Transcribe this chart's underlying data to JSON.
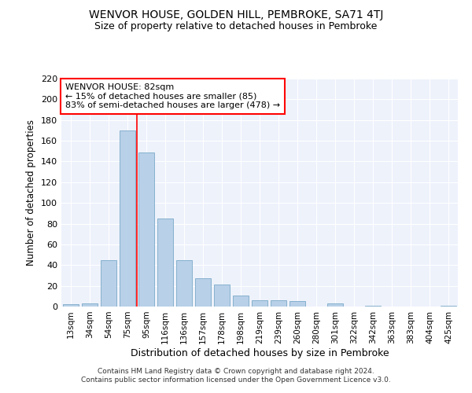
{
  "title": "WENVOR HOUSE, GOLDEN HILL, PEMBROKE, SA71 4TJ",
  "subtitle": "Size of property relative to detached houses in Pembroke",
  "xlabel": "Distribution of detached houses by size in Pembroke",
  "ylabel": "Number of detached properties",
  "categories": [
    "13sqm",
    "34sqm",
    "54sqm",
    "75sqm",
    "95sqm",
    "116sqm",
    "136sqm",
    "157sqm",
    "178sqm",
    "198sqm",
    "219sqm",
    "239sqm",
    "260sqm",
    "280sqm",
    "301sqm",
    "322sqm",
    "342sqm",
    "363sqm",
    "383sqm",
    "404sqm",
    "425sqm"
  ],
  "values": [
    2,
    3,
    45,
    170,
    149,
    85,
    45,
    27,
    21,
    11,
    6,
    6,
    5,
    0,
    3,
    0,
    1,
    0,
    0,
    0,
    1
  ],
  "bar_color": "#b8d0e8",
  "bar_edge_color": "#7aaac8",
  "background_color": "#eef2fb",
  "grid_color": "#ffffff",
  "annotation_text": "WENVOR HOUSE: 82sqm\n← 15% of detached houses are smaller (85)\n83% of semi-detached houses are larger (478) →",
  "vline_x_index": 4,
  "vline_color": "red",
  "ylim": [
    0,
    220
  ],
  "yticks": [
    0,
    20,
    40,
    60,
    80,
    100,
    120,
    140,
    160,
    180,
    200,
    220
  ],
  "footer_line1": "Contains HM Land Registry data © Crown copyright and database right 2024.",
  "footer_line2": "Contains public sector information licensed under the Open Government Licence v3.0."
}
